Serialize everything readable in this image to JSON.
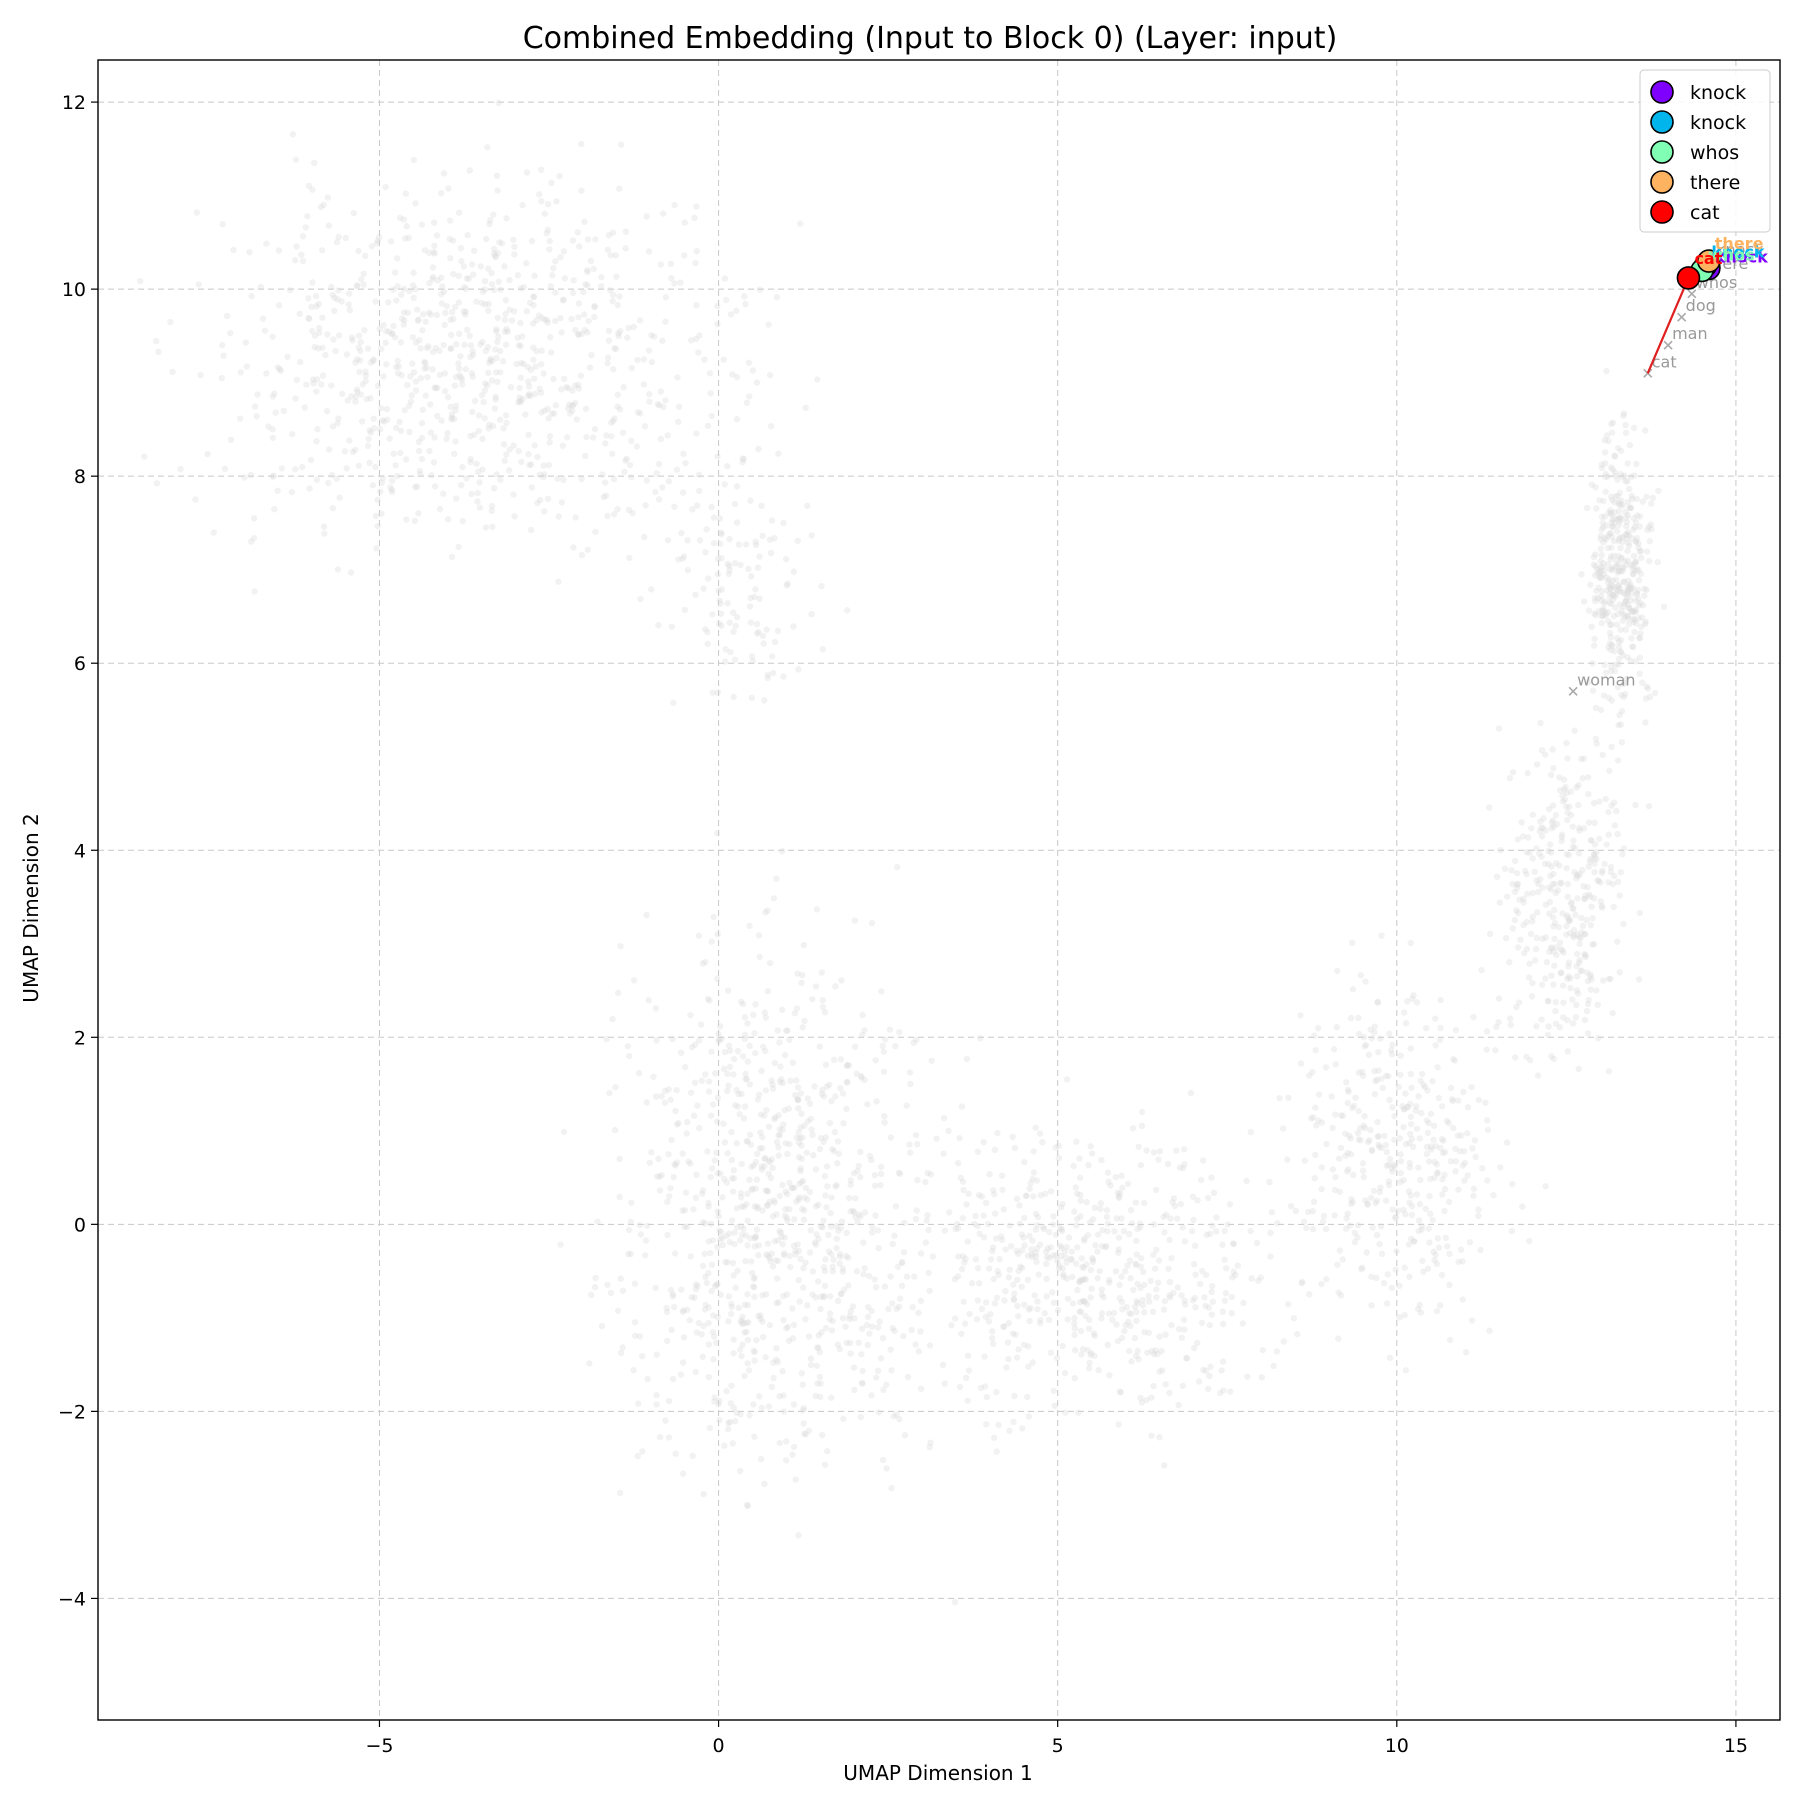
{
  "chart_data": {
    "type": "scatter",
    "title": "Combined Embedding (Input to Block 0) (Layer: input)",
    "xlabel": "UMAP Dimension 1",
    "ylabel": "UMAP Dimension 2",
    "xlim": [
      -9.15,
      15.65
    ],
    "ylim": [
      -5.3,
      12.45
    ],
    "xticks": [
      -5,
      0,
      5,
      10,
      15
    ],
    "yticks": [
      -4,
      -2,
      0,
      2,
      4,
      6,
      8,
      10,
      12
    ],
    "xtick_labels": [
      "−5",
      "0",
      "5",
      "10",
      "15"
    ],
    "ytick_labels": [
      "−4",
      "−2",
      "0",
      "2",
      "4",
      "6",
      "8",
      "10",
      "12"
    ],
    "grid": true,
    "legend_position": "top-right",
    "background_points": {
      "color": "#d9d9d9",
      "description_regions": [
        {
          "center": [
            -3.5,
            9.2
          ],
          "spread": [
            3.8,
            1.9
          ],
          "count": 900
        },
        {
          "center": [
            0.2,
            6.8
          ],
          "spread": [
            1.2,
            1.4
          ],
          "count": 120
        },
        {
          "center": [
            0.8,
            0.2
          ],
          "spread": [
            2.3,
            2.8
          ],
          "count": 900
        },
        {
          "center": [
            5.5,
            -0.5
          ],
          "spread": [
            2.5,
            1.5
          ],
          "count": 600
        },
        {
          "center": [
            10.0,
            0.8
          ],
          "spread": [
            1.6,
            1.8
          ],
          "count": 400
        },
        {
          "center": [
            12.5,
            3.5
          ],
          "spread": [
            0.9,
            1.6
          ],
          "count": 350
        },
        {
          "center": [
            13.3,
            7.0
          ],
          "spread": [
            0.45,
            1.5
          ],
          "count": 400
        }
      ]
    },
    "highlighted_tokens": [
      {
        "label": "knock",
        "x": 14.6,
        "y": 10.22,
        "color": "#8000ff"
      },
      {
        "label": "knock",
        "x": 14.55,
        "y": 10.25,
        "color": "#00b4ec"
      },
      {
        "label": "whos",
        "x": 14.5,
        "y": 10.2,
        "color": "#80ffb4"
      },
      {
        "label": "there",
        "x": 14.6,
        "y": 10.3,
        "color": "#ffb360"
      },
      {
        "label": "cat",
        "x": 14.3,
        "y": 10.12,
        "color": "#ff0000"
      }
    ],
    "reference_words": [
      {
        "label": "woman",
        "x": 12.6,
        "y": 5.7
      },
      {
        "label": "cat",
        "x": 13.7,
        "y": 9.1
      },
      {
        "label": "man",
        "x": 14.0,
        "y": 9.4
      },
      {
        "label": "dog",
        "x": 14.2,
        "y": 9.7
      },
      {
        "label": "whos",
        "x": 14.35,
        "y": 9.95
      },
      {
        "label": "there",
        "x": 14.5,
        "y": 10.15
      },
      {
        "label": "knock",
        "x": 14.65,
        "y": 10.3
      }
    ],
    "arrow": {
      "from": [
        13.7,
        9.1
      ],
      "to": [
        14.3,
        10.12
      ],
      "color": "#e02020"
    }
  }
}
